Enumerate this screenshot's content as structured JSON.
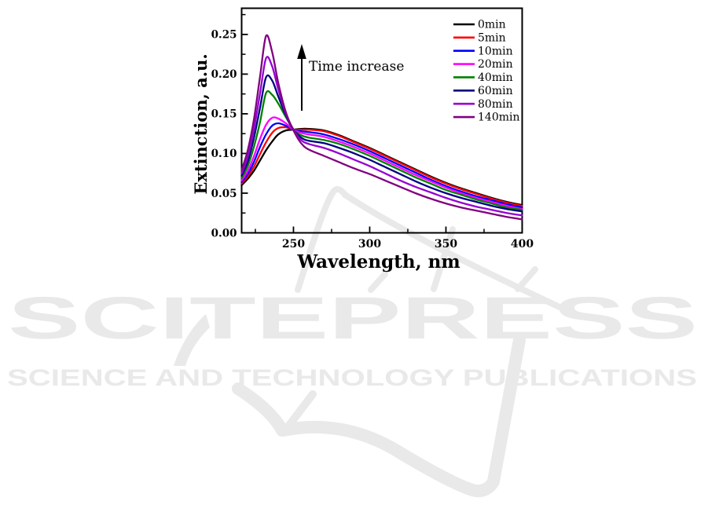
{
  "watermark": {
    "wordmark": "SCITEPRESS",
    "subtitle": "SCIENCE AND TECHNOLOGY PUBLICATIONS",
    "color": "#e9e9e9"
  },
  "chart_data": {
    "type": "line",
    "title": "",
    "xlabel": "Wavelength, nm",
    "ylabel": "Extinction, a.u.",
    "annotation": "Time increase",
    "grid": false,
    "legend_position": "top-right-inside",
    "axis_color": "#000000",
    "xlim": [
      216,
      400
    ],
    "ylim": [
      0,
      0.283
    ],
    "x_major_ticks": [
      250,
      300,
      350,
      400
    ],
    "x_minor_ticks": [
      225,
      275,
      325,
      375
    ],
    "y_major_tick_labels": [
      "0.00",
      "0.05",
      "0.10",
      "0.15",
      "0.20",
      "0.25"
    ],
    "y_minor_ticks": [
      0.025,
      0.075,
      0.125,
      0.175,
      0.225,
      0.275
    ],
    "x": [
      216,
      220,
      224,
      228,
      232,
      236,
      240,
      245,
      250,
      255,
      260,
      270,
      280,
      290,
      300,
      310,
      320,
      330,
      340,
      350,
      360,
      370,
      380,
      390,
      400
    ],
    "series": [
      {
        "name": "0min",
        "color": "#000000",
        "values": [
          0.06,
          0.068,
          0.078,
          0.091,
          0.104,
          0.115,
          0.124,
          0.129,
          0.13,
          0.131,
          0.131,
          0.129,
          0.123,
          0.115,
          0.107,
          0.098,
          0.089,
          0.08,
          0.071,
          0.063,
          0.056,
          0.05,
          0.044,
          0.039,
          0.035
        ]
      },
      {
        "name": "5min",
        "color": "#ff0000",
        "values": [
          0.062,
          0.071,
          0.083,
          0.099,
          0.114,
          0.126,
          0.132,
          0.133,
          0.13,
          0.13,
          0.13,
          0.128,
          0.122,
          0.114,
          0.106,
          0.097,
          0.088,
          0.079,
          0.07,
          0.062,
          0.055,
          0.049,
          0.043,
          0.038,
          0.034
        ]
      },
      {
        "name": "10min",
        "color": "#0000ff",
        "values": [
          0.064,
          0.074,
          0.089,
          0.108,
          0.124,
          0.135,
          0.138,
          0.135,
          0.13,
          0.128,
          0.127,
          0.124,
          0.118,
          0.111,
          0.103,
          0.094,
          0.085,
          0.076,
          0.067,
          0.059,
          0.052,
          0.046,
          0.041,
          0.036,
          0.032
        ]
      },
      {
        "name": "20min",
        "color": "#ff00ff",
        "values": [
          0.066,
          0.078,
          0.096,
          0.118,
          0.136,
          0.145,
          0.144,
          0.138,
          0.13,
          0.126,
          0.124,
          0.121,
          0.115,
          0.108,
          0.1,
          0.091,
          0.082,
          0.073,
          0.065,
          0.057,
          0.05,
          0.044,
          0.039,
          0.034,
          0.03
        ]
      },
      {
        "name": "40min",
        "color": "#008000",
        "values": [
          0.069,
          0.084,
          0.108,
          0.139,
          0.176,
          0.174,
          0.163,
          0.146,
          0.13,
          0.123,
          0.12,
          0.117,
          0.112,
          0.105,
          0.097,
          0.088,
          0.079,
          0.07,
          0.062,
          0.054,
          0.048,
          0.042,
          0.037,
          0.032,
          0.029
        ]
      },
      {
        "name": "60min",
        "color": "#000080",
        "values": [
          0.072,
          0.09,
          0.119,
          0.157,
          0.196,
          0.192,
          0.172,
          0.148,
          0.13,
          0.12,
          0.116,
          0.113,
          0.107,
          0.1,
          0.092,
          0.083,
          0.074,
          0.065,
          0.057,
          0.05,
          0.044,
          0.039,
          0.034,
          0.03,
          0.027
        ]
      },
      {
        "name": "80min",
        "color": "#9400d3",
        "values": [
          0.075,
          0.096,
          0.13,
          0.175,
          0.22,
          0.21,
          0.181,
          0.15,
          0.13,
          0.117,
          0.112,
          0.107,
          0.1,
          0.092,
          0.084,
          0.075,
          0.066,
          0.058,
          0.051,
          0.044,
          0.038,
          0.033,
          0.029,
          0.025,
          0.022
        ]
      },
      {
        "name": "140min",
        "color": "#800080",
        "values": [
          0.079,
          0.104,
          0.142,
          0.196,
          0.248,
          0.228,
          0.189,
          0.152,
          0.129,
          0.113,
          0.105,
          0.097,
          0.089,
          0.081,
          0.074,
          0.066,
          0.058,
          0.05,
          0.043,
          0.037,
          0.032,
          0.028,
          0.024,
          0.02,
          0.017
        ]
      }
    ]
  }
}
